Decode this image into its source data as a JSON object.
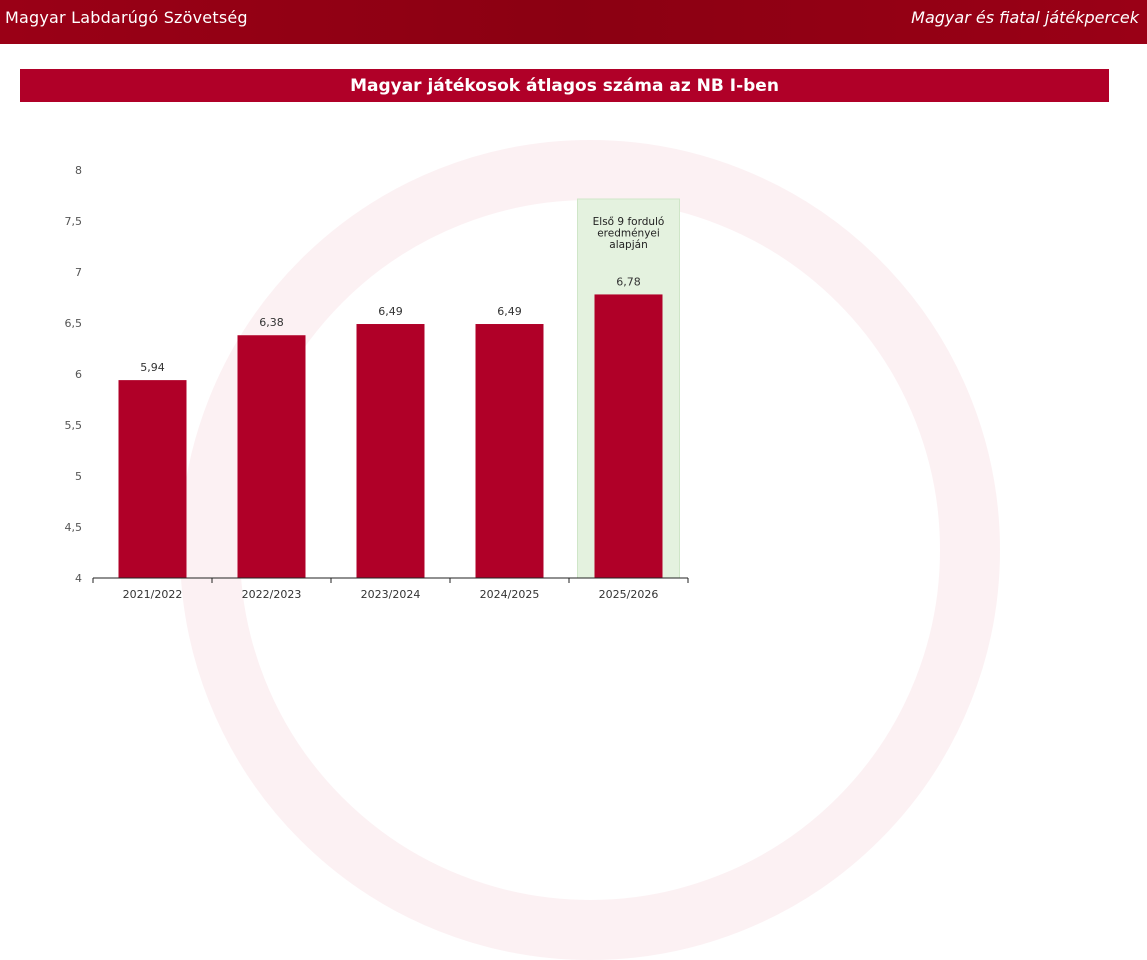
{
  "header": {
    "left": "Magyar Labdarúgó Szövetség",
    "right": "Magyar és fiatal játékpercek"
  },
  "chart_data": {
    "type": "bar",
    "title": "Magyar játékosok átlagos száma az NB I-ben",
    "categories": [
      "2021/2022",
      "2022/2023",
      "2023/2024",
      "2024/2025",
      "2025/2026"
    ],
    "values": [
      5.94,
      6.38,
      6.49,
      6.49,
      6.78
    ],
    "value_labels": [
      "5,94",
      "6,38",
      "6,49",
      "6,49",
      "6,78"
    ],
    "ylim": [
      4,
      8
    ],
    "yticks": [
      "4",
      "4,5",
      "5",
      "5,5",
      "6",
      "6,5",
      "7",
      "7,5",
      "8"
    ],
    "xlabel": "",
    "ylabel": "",
    "bar_color": "#b00028",
    "highlight": {
      "category": "2025/2026",
      "color": "#e4f2df",
      "note_lines": [
        "Első 9 forduló",
        "eredményei",
        "alapján"
      ]
    },
    "grid": false
  }
}
